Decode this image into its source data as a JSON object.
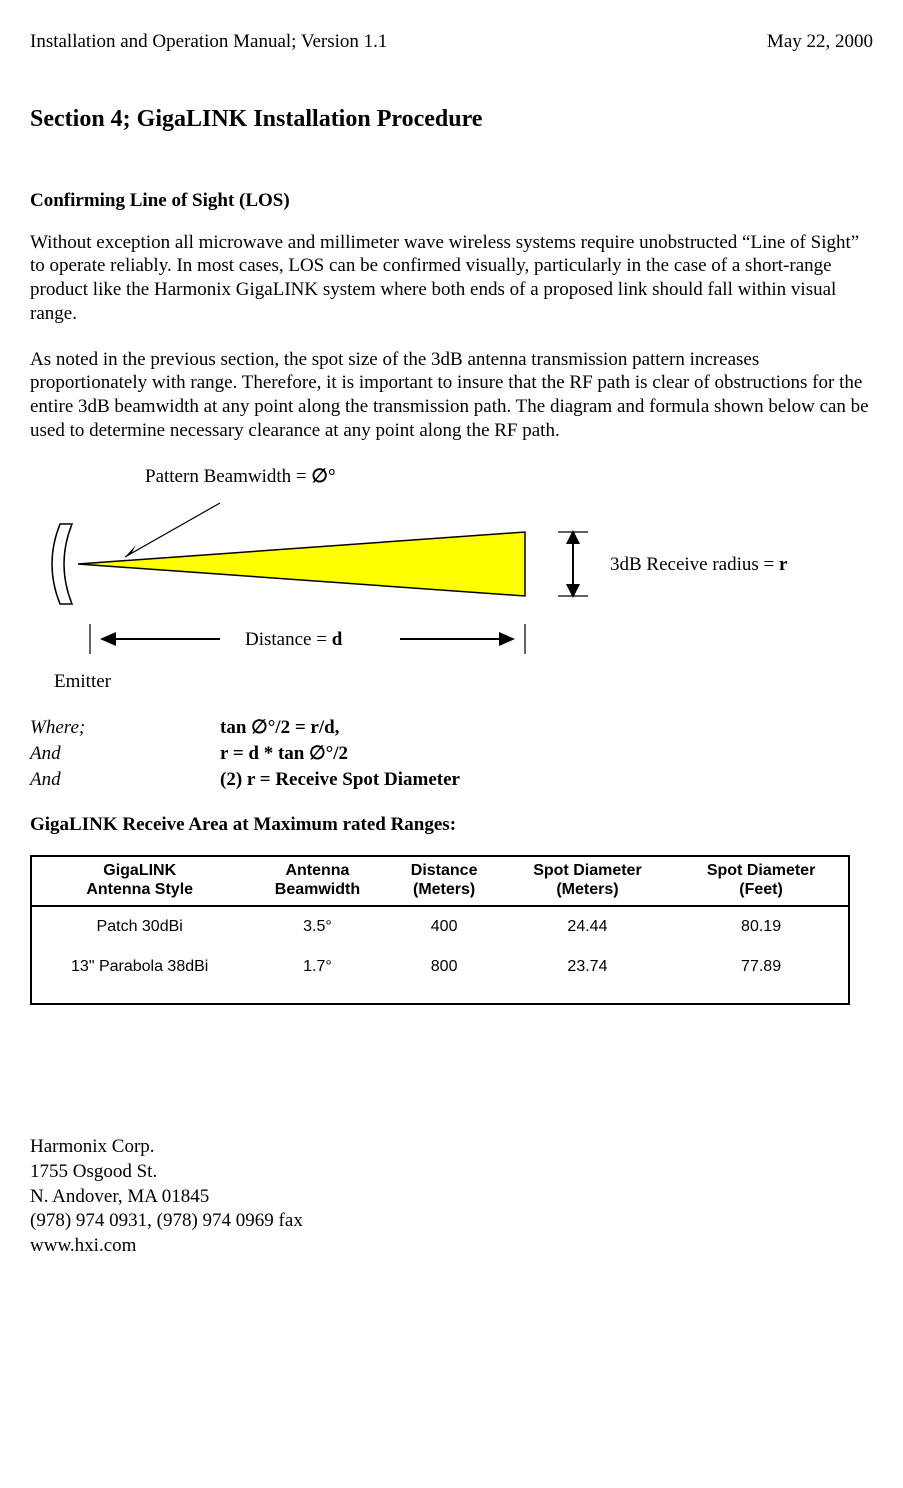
{
  "header": {
    "left": "Installation and Operation Manual; Version 1.1",
    "right": "May 22, 2000"
  },
  "section_title": "Section 4; GigaLINK Installation Procedure",
  "subheading": "Confirming Line of Sight (LOS)",
  "para1": "Without exception all microwave and millimeter wave wireless systems require unobstructed “Line of Sight” to operate reliably. In most cases, LOS can be confirmed visually, particularly in the case of a short-range product like the Harmonix GigaLINK system where both ends of a proposed link should fall within visual range.",
  "para2": "As noted in the previous section, the spot size of the 3dB antenna transmission pattern increases proportionately with range. Therefore, it is important to insure that the RF path is clear of obstructions for the entire 3dB beamwidth at any point along the transmission path.  The diagram and formula shown below can be used to determine necessary clearance at any point along the RF path.",
  "diagram": {
    "beam_label_prefix": "Pattern Beamwidth  = ",
    "beam_symbol": "∅°",
    "distance_label_prefix": "Distance = ",
    "distance_symbol": "d",
    "radius_label_prefix": "3dB Receive radius = ",
    "radius_symbol": "r",
    "emitter_label": "Emitter",
    "beam_fill": "#ffff00",
    "beam_stroke": "#000000",
    "background": "#ffffff"
  },
  "formulas": {
    "row1_left": "Where;",
    "row1_right": "tan ∅°/2 = r/d,",
    "row2_left": "And",
    "row2_right": "r = d * tan ∅°/2",
    "row3_left": "And",
    "row3_right": "(2) r  = Receive Spot Diameter"
  },
  "ranges_heading": "GigaLINK Receive Area at Maximum rated Ranges:",
  "table": {
    "columns": [
      "GigaLINK\nAntenna Style",
      "Antenna\nBeamwidth",
      "Distance\n(Meters)",
      "Spot Diameter\n(Meters)",
      "Spot Diameter\n(Feet)"
    ],
    "rows": [
      [
        "Patch 30dBi",
        "3.5°",
        "400",
        "24.44",
        "80.19"
      ],
      [
        "13\" Parabola 38dBi",
        "1.7°",
        "800",
        "23.74",
        "77.89"
      ]
    ]
  },
  "footer": {
    "line1": "Harmonix Corp.",
    "line2": "1755 Osgood St.",
    "line3": "N. Andover, MA 01845",
    "line4": "(978) 974 0931, (978) 974 0969 fax",
    "line5": "www.hxi.com"
  }
}
